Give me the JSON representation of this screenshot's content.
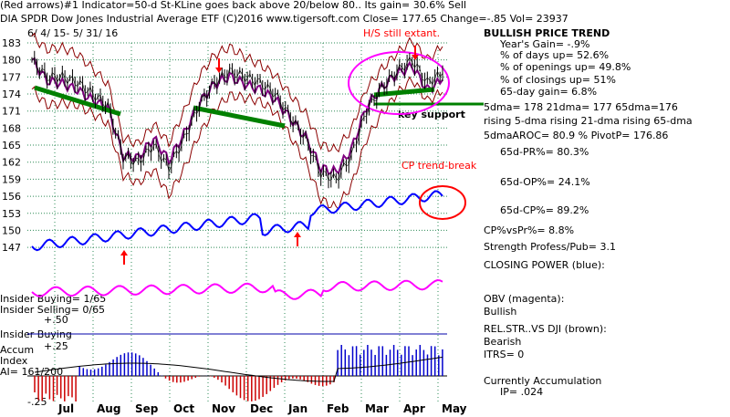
{
  "header": {
    "line1": "(Red arrows)#1 Indicator=50-d St-KLine goes back above 20/below 80.. Its gain= 30.6% Sell",
    "line2": "DIA  SPDR Dow Jones Industrial Average ETF  (C)2016 www.tigersoft.com     Close= 177.65  Change=-.85 Vol= 23937",
    "date_range": "6/ 4/ 15- 5/ 31/ 16"
  },
  "annotations": {
    "hs": "H/S still extant.",
    "key_support": "key support",
    "cp_break": "CP trend-break"
  },
  "stats": {
    "title": "BULLISH PRICE TREND",
    "years_gain": "Year's Gain= -.9%",
    "days_up": "% of days up= 52.6%",
    "openings_up": "% of openings up= 49.8%",
    "closings_up": "% of closings up= 51%",
    "gain65": "65-day gain= 6.8%",
    "dma": "5dma= 178 21dma= 177 65dma=176",
    "rising": "rising 5-dma rising 21-dma rising 65-dma",
    "aroc": "5dmaAROC= 80.9 %  PivotP= 176.86",
    "pr": "65d-PR%= 80.3%",
    "op": "65d-OP%= 24.1%",
    "cp": "65d-CP%= 89.2%",
    "cpvspr": "CP%vsPr%=  8.8%",
    "strength": "Strength Profess/Pub= 3.1",
    "closing_power": "CLOSING POWER (blue):",
    "obv": "OBV (magenta):",
    "obv_val": "Bullish",
    "relstr": "REL.STR..VS DJI (brown):",
    "relstr_val": "Bearish",
    "itrs": "ITRS= 0",
    "accum_title": "Currently Accumulation",
    "ip": "IP=  .024"
  },
  "left_labels": {
    "insider_buying": "Insider Buying= 1/65",
    "insider_selling": "Insider Selling= 0/65",
    "p50": "+.50",
    "insider_buying2": "Insider Buying",
    "p25": "+.25",
    "accum": "Accum",
    "index": "Index",
    "ai": "AI= 161/200",
    "m25": "-.25"
  },
  "colors": {
    "price": "#000000",
    "bands": "#8b0000",
    "ma65": "#800080",
    "closing_power": "#0000ff",
    "obv": "#ff00ff",
    "trendline": "#008000",
    "accum_pos": "#0000cc",
    "accum_neg": "#cc0000",
    "annotation": "#ff0000"
  },
  "chart_data": {
    "type": "line",
    "title": "DIA  SPDR Dow Jones Industrial Average ETF",
    "y_ticks": [
      183,
      180,
      177,
      174,
      171,
      168,
      165,
      162,
      159,
      156,
      153,
      150,
      147
    ],
    "ylim": [
      145,
      185
    ],
    "x_ticks": [
      "Jul",
      "Aug",
      "Sep",
      "Oct",
      "Nov",
      "Dec",
      "Jan",
      "Feb",
      "Mar",
      "Apr",
      "May"
    ],
    "series": [
      {
        "name": "Close",
        "x": [
          "Jun",
          "Jun",
          "Jul",
          "Jul",
          "Jul",
          "Aug",
          "Aug",
          "Aug",
          "Sep",
          "Sep",
          "Oct",
          "Oct",
          "Oct",
          "Nov",
          "Nov",
          "Dec",
          "Dec",
          "Jan",
          "Jan",
          "Jan",
          "Feb",
          "Feb",
          "Mar",
          "Mar",
          "Apr",
          "Apr",
          "May",
          "May"
        ],
        "values": [
          180,
          177,
          177,
          176,
          174,
          172,
          163,
          162,
          165,
          161,
          166,
          172,
          176,
          178,
          177,
          176,
          174,
          170,
          166,
          160,
          159,
          163,
          171,
          175,
          178,
          180,
          176,
          177.65
        ]
      }
    ],
    "accumulation_ylim": [
      -0.25,
      0.5
    ],
    "grid": true
  }
}
